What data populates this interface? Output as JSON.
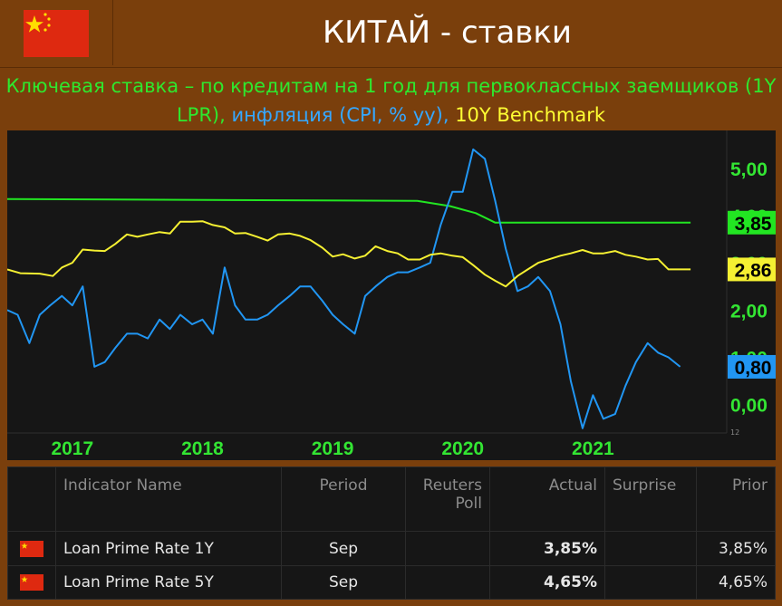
{
  "header": {
    "title": "КИТАЙ - ставки",
    "flag": "china-flag-icon"
  },
  "subtitle": {
    "part_green": "Ключевая ставка – по кредитам на 1 год для первоклассных заемщиков (1Y LPR),",
    "part_blue": " инфляция (CPI, % yy),",
    "part_yellow": " 10Y Benchmark"
  },
  "colors": {
    "background": "#7a3f0c",
    "panel": "#161616",
    "lpr": "#22e522",
    "cpi": "#2196f3",
    "bond": "#f5f032",
    "axis_text": "#33e533",
    "actual": "#ff8c1a"
  },
  "chart_data": {
    "type": "line",
    "x_ticks": [
      "2017",
      "2018",
      "2019",
      "2020",
      "2021"
    ],
    "y_ticks": [
      "5,00",
      "4,00",
      "3,00",
      "2,00",
      "1,00",
      "0,00"
    ],
    "y_range": [
      -0.6,
      5.8
    ],
    "x_range": [
      2016.5,
      2022.0
    ],
    "corner_label": "12",
    "series": [
      {
        "name": "1Y LPR",
        "color": "#22e522",
        "last_label": "3,85",
        "points": [
          [
            2016.5,
            4.35
          ],
          [
            2019.65,
            4.31
          ],
          [
            2019.9,
            4.2
          ],
          [
            2020.1,
            4.05
          ],
          [
            2020.25,
            3.85
          ],
          [
            2021.75,
            3.85
          ]
        ]
      },
      {
        "name": "CPI",
        "color": "#2196f3",
        "last_label": "0,80",
        "points": [
          [
            2016.5,
            2.0
          ],
          [
            2016.58,
            1.9
          ],
          [
            2016.67,
            1.3
          ],
          [
            2016.75,
            1.9
          ],
          [
            2016.83,
            2.1
          ],
          [
            2016.92,
            2.3
          ],
          [
            2017.0,
            2.1
          ],
          [
            2017.08,
            2.5
          ],
          [
            2017.17,
            0.8
          ],
          [
            2017.25,
            0.9
          ],
          [
            2017.33,
            1.2
          ],
          [
            2017.42,
            1.5
          ],
          [
            2017.5,
            1.5
          ],
          [
            2017.58,
            1.4
          ],
          [
            2017.67,
            1.8
          ],
          [
            2017.75,
            1.6
          ],
          [
            2017.83,
            1.9
          ],
          [
            2017.92,
            1.7
          ],
          [
            2018.0,
            1.8
          ],
          [
            2018.08,
            1.5
          ],
          [
            2018.17,
            2.9
          ],
          [
            2018.25,
            2.1
          ],
          [
            2018.33,
            1.8
          ],
          [
            2018.42,
            1.8
          ],
          [
            2018.5,
            1.9
          ],
          [
            2018.58,
            2.1
          ],
          [
            2018.67,
            2.3
          ],
          [
            2018.75,
            2.5
          ],
          [
            2018.83,
            2.5
          ],
          [
            2018.92,
            2.2
          ],
          [
            2019.0,
            1.9
          ],
          [
            2019.08,
            1.7
          ],
          [
            2019.17,
            1.5
          ],
          [
            2019.25,
            2.3
          ],
          [
            2019.33,
            2.5
          ],
          [
            2019.42,
            2.7
          ],
          [
            2019.5,
            2.8
          ],
          [
            2019.58,
            2.8
          ],
          [
            2019.67,
            2.9
          ],
          [
            2019.75,
            3.0
          ],
          [
            2019.83,
            3.8
          ],
          [
            2019.92,
            4.5
          ],
          [
            2020.0,
            4.5
          ],
          [
            2020.08,
            5.4
          ],
          [
            2020.17,
            5.2
          ],
          [
            2020.25,
            4.3
          ],
          [
            2020.33,
            3.3
          ],
          [
            2020.42,
            2.4
          ],
          [
            2020.5,
            2.5
          ],
          [
            2020.58,
            2.7
          ],
          [
            2020.67,
            2.4
          ],
          [
            2020.75,
            1.7
          ],
          [
            2020.83,
            0.5
          ],
          [
            2020.92,
            -0.5
          ],
          [
            2021.0,
            0.2
          ],
          [
            2021.08,
            -0.3
          ],
          [
            2021.17,
            -0.2
          ],
          [
            2021.25,
            0.4
          ],
          [
            2021.33,
            0.9
          ],
          [
            2021.42,
            1.3
          ],
          [
            2021.5,
            1.1
          ],
          [
            2021.58,
            1.0
          ],
          [
            2021.67,
            0.8
          ]
        ]
      },
      {
        "name": "10Y Benchmark",
        "color": "#f5f032",
        "last_label": "2,86",
        "points": [
          [
            2016.5,
            2.86
          ],
          [
            2016.6,
            2.78
          ],
          [
            2016.75,
            2.77
          ],
          [
            2016.85,
            2.72
          ],
          [
            2016.92,
            2.9
          ],
          [
            2017.0,
            3.0
          ],
          [
            2017.08,
            3.28
          ],
          [
            2017.17,
            3.26
          ],
          [
            2017.25,
            3.25
          ],
          [
            2017.33,
            3.4
          ],
          [
            2017.42,
            3.6
          ],
          [
            2017.5,
            3.55
          ],
          [
            2017.58,
            3.6
          ],
          [
            2017.67,
            3.65
          ],
          [
            2017.75,
            3.62
          ],
          [
            2017.83,
            3.87
          ],
          [
            2017.92,
            3.87
          ],
          [
            2018.0,
            3.88
          ],
          [
            2018.08,
            3.8
          ],
          [
            2018.17,
            3.75
          ],
          [
            2018.25,
            3.62
          ],
          [
            2018.33,
            3.63
          ],
          [
            2018.42,
            3.55
          ],
          [
            2018.5,
            3.47
          ],
          [
            2018.58,
            3.6
          ],
          [
            2018.67,
            3.62
          ],
          [
            2018.75,
            3.57
          ],
          [
            2018.83,
            3.48
          ],
          [
            2018.92,
            3.32
          ],
          [
            2019.0,
            3.13
          ],
          [
            2019.08,
            3.18
          ],
          [
            2019.17,
            3.09
          ],
          [
            2019.25,
            3.15
          ],
          [
            2019.33,
            3.35
          ],
          [
            2019.42,
            3.25
          ],
          [
            2019.5,
            3.2
          ],
          [
            2019.58,
            3.07
          ],
          [
            2019.67,
            3.07
          ],
          [
            2019.75,
            3.17
          ],
          [
            2019.83,
            3.2
          ],
          [
            2019.92,
            3.15
          ],
          [
            2020.0,
            3.12
          ],
          [
            2020.08,
            2.95
          ],
          [
            2020.17,
            2.75
          ],
          [
            2020.25,
            2.62
          ],
          [
            2020.33,
            2.5
          ],
          [
            2020.42,
            2.72
          ],
          [
            2020.5,
            2.86
          ],
          [
            2020.58,
            3.0
          ],
          [
            2020.67,
            3.08
          ],
          [
            2020.75,
            3.15
          ],
          [
            2020.83,
            3.2
          ],
          [
            2020.92,
            3.27
          ],
          [
            2021.0,
            3.2
          ],
          [
            2021.08,
            3.2
          ],
          [
            2021.17,
            3.25
          ],
          [
            2021.25,
            3.17
          ],
          [
            2021.33,
            3.13
          ],
          [
            2021.42,
            3.07
          ],
          [
            2021.5,
            3.08
          ],
          [
            2021.58,
            2.86
          ],
          [
            2021.67,
            2.86
          ],
          [
            2021.75,
            2.86
          ]
        ]
      }
    ]
  },
  "table": {
    "headers": {
      "name": "Indicator Name",
      "period": "Period",
      "poll_1": "Reuters",
      "poll_2": "Poll",
      "actual": "Actual",
      "surprise": "Surprise",
      "prior": "Prior"
    },
    "rows": [
      {
        "flag": "china-flag-icon",
        "name": "Loan Prime Rate 1Y",
        "period": "Sep",
        "poll": "",
        "actual": "3,85%",
        "surprise": "",
        "prior": "3,85%"
      },
      {
        "flag": "china-flag-icon",
        "name": "Loan Prime Rate 5Y",
        "period": "Sep",
        "poll": "",
        "actual": "4,65%",
        "surprise": "",
        "prior": "4,65%"
      }
    ]
  }
}
